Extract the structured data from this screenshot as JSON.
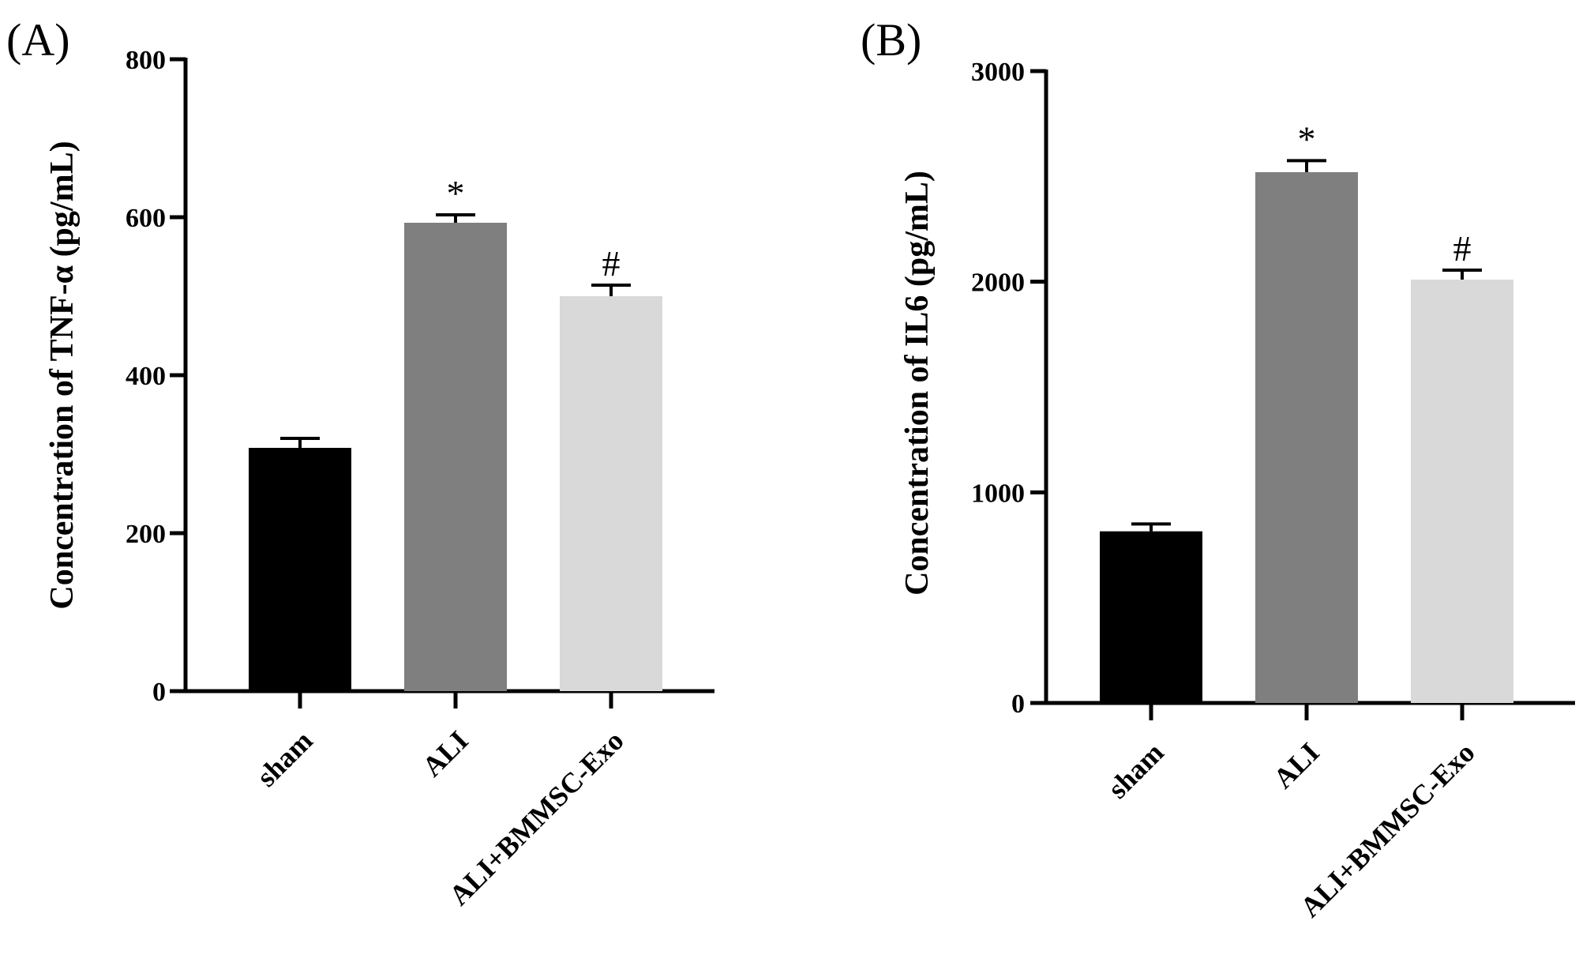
{
  "chart_data": [
    {
      "type": "bar",
      "panel_label": "(A)",
      "categories": [
        "sham",
        "ALI",
        "ALI+BMMSC-Exo"
      ],
      "values": [
        308,
        593,
        500
      ],
      "errors": [
        12,
        10,
        14
      ],
      "significance": [
        "",
        "*",
        "#"
      ],
      "colors": [
        "#000000",
        "#7f7f7f",
        "#d9d9d9"
      ],
      "ylabel": "Concentration of TNF-α (pg/mL)",
      "ylim": [
        0,
        800
      ],
      "yticks": [
        0,
        200,
        400,
        600,
        800
      ],
      "xlabel": ""
    },
    {
      "type": "bar",
      "panel_label": "(B)",
      "categories": [
        "sham",
        "ALI",
        "ALI+BMMSC-Exo"
      ],
      "values": [
        815,
        2520,
        2010
      ],
      "errors": [
        35,
        55,
        45
      ],
      "significance": [
        "",
        "*",
        "#"
      ],
      "colors": [
        "#000000",
        "#7f7f7f",
        "#d9d9d9"
      ],
      "ylabel": "Concentration of IL6 (pg/mL)",
      "ylim": [
        0,
        3000
      ],
      "yticks": [
        0,
        1000,
        2000,
        3000
      ],
      "xlabel": ""
    }
  ]
}
